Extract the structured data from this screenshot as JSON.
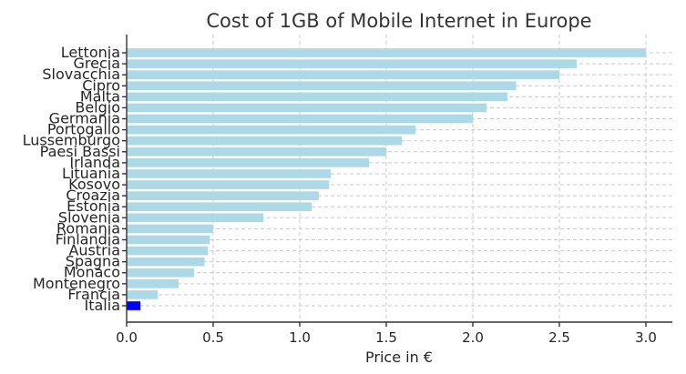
{
  "chart_data": {
    "type": "bar",
    "orientation": "horizontal",
    "title": "Cost of 1GB of Mobile Internet in Europe",
    "xlabel": "Price in €",
    "ylabel": "",
    "xlim": [
      0,
      3.15
    ],
    "xticks": [
      0.0,
      0.5,
      1.0,
      1.5,
      2.0,
      2.5,
      3.0
    ],
    "xtick_labels": [
      "0.0",
      "0.5",
      "1.0",
      "1.5",
      "2.0",
      "2.5",
      "3.0"
    ],
    "grid": true,
    "categories": [
      "Lettonia",
      "Grecia",
      "Slovacchia",
      "Cipro",
      "Malta",
      "Belgio",
      "Germania",
      "Portogallo",
      "Lussemburgo",
      "Paesi Bassi",
      "Irlanda",
      "Lituania",
      "Kosovo",
      "Croazia",
      "Estonia",
      "Slovenia",
      "Romania",
      "Finlandia",
      "Austria",
      "Spagna",
      "Monaco",
      "Montenegro",
      "Francia",
      "Italia"
    ],
    "values": [
      3.0,
      2.6,
      2.5,
      2.25,
      2.2,
      2.08,
      2.0,
      1.67,
      1.59,
      1.5,
      1.4,
      1.18,
      1.17,
      1.11,
      1.07,
      0.79,
      0.5,
      0.48,
      0.47,
      0.45,
      0.39,
      0.3,
      0.18,
      0.08
    ],
    "colors": {
      "default": "#add8e6",
      "highlight": "#0000ff"
    },
    "highlight_category": "Italia"
  }
}
